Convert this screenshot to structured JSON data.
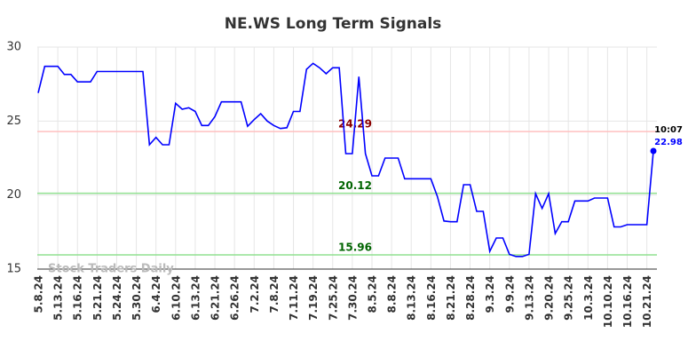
{
  "chart_data": {
    "type": "line",
    "title": "NE.WS Long Term Signals",
    "categories": [
      "5.8.24",
      null,
      null,
      "5.13.24",
      null,
      null,
      "5.16.24",
      null,
      null,
      "5.21.24",
      null,
      null,
      "5.24.24",
      null,
      null,
      "5.30.24",
      null,
      null,
      "6.4.24",
      null,
      null,
      "6.10.24",
      null,
      null,
      "6.13.24",
      null,
      null,
      "6.21.24",
      null,
      null,
      "6.26.24",
      null,
      null,
      "7.2.24",
      null,
      null,
      "7.8.24",
      null,
      null,
      "7.11.24",
      null,
      null,
      "7.19.24",
      null,
      null,
      "7.25.24",
      null,
      null,
      "7.30.24",
      null,
      null,
      "8.5.24",
      null,
      null,
      "8.8.24",
      null,
      null,
      "8.13.24",
      null,
      null,
      "8.16.24",
      null,
      null,
      "8.21.24",
      null,
      null,
      "8.28.24",
      null,
      null,
      "9.3.24",
      null,
      null,
      "9.9.24",
      null,
      null,
      "9.13.24",
      null,
      null,
      "9.20.24",
      null,
      null,
      "9.25.24",
      null,
      null,
      "10.3.24",
      null,
      null,
      "10.10.24",
      null,
      null,
      "10.16.24",
      null,
      null,
      "10.21.24",
      null
    ],
    "series": [
      {
        "color": "#0000ff",
        "values": [
          26.9,
          28.7,
          28.7,
          28.7,
          28.15,
          28.15,
          27.65,
          27.65,
          27.65,
          28.35,
          28.35,
          28.35,
          28.35,
          28.35,
          28.35,
          28.35,
          28.35,
          23.4,
          23.9,
          23.4,
          23.4,
          26.2,
          25.8,
          25.9,
          25.65,
          24.7,
          24.7,
          25.3,
          26.3,
          26.3,
          26.3,
          26.3,
          24.65,
          25.1,
          25.5,
          25.0,
          24.7,
          24.5,
          24.55,
          25.65,
          25.65,
          28.5,
          28.9,
          28.6,
          28.2,
          28.6,
          28.6,
          22.8,
          22.8,
          28.0,
          22.8,
          21.3,
          21.3,
          22.5,
          22.5,
          22.5,
          21.1,
          21.1,
          21.1,
          21.1,
          21.1,
          19.9,
          18.25,
          18.2,
          18.2,
          20.7,
          20.7,
          18.9,
          18.9,
          16.2,
          17.1,
          17.1,
          16.0,
          15.85,
          15.85,
          16.0,
          20.1,
          19.1,
          20.1,
          17.4,
          18.2,
          18.2,
          19.6,
          19.6,
          19.6,
          19.8,
          19.8,
          19.8,
          17.85,
          17.85,
          18.0,
          18.0,
          18.0,
          18.0,
          22.98
        ]
      }
    ],
    "ylim": [
      15,
      30
    ],
    "yticks": [
      15,
      20,
      25,
      30
    ],
    "grid": true,
    "reference_lines": [
      {
        "value": 24.29,
        "color": "#ffc0c0",
        "label_color": "#8b0000"
      },
      {
        "value": 20.12,
        "color": "#90e090",
        "label_color": "#006400"
      },
      {
        "value": 15.96,
        "color": "#90e090",
        "label_color": "#006400"
      }
    ],
    "last_point_annotation": {
      "time": "10:07",
      "value": 22.98
    },
    "watermark": "Stock Traders Daily"
  }
}
